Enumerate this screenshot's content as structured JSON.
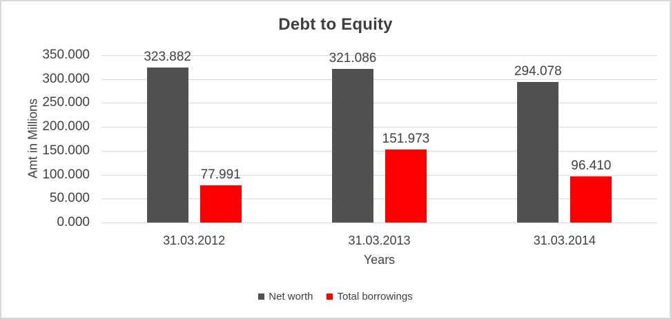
{
  "frame": {
    "background": "#ffffff",
    "border_color": "#d8d8d8"
  },
  "chart_data": {
    "type": "bar",
    "title": "Debt to Equity",
    "xlabel": "Years",
    "ylabel": "Amt in Millions",
    "categories": [
      "31.03.2012",
      "31.03.2013",
      "31.03.2014"
    ],
    "series": [
      {
        "name": "Net worth",
        "color": "#515151",
        "values": [
          323.882,
          321.086,
          294.078
        ]
      },
      {
        "name": "Total borrowings",
        "color": "#ff0000",
        "values": [
          77.991,
          151.973,
          96.41
        ]
      }
    ],
    "ylim": [
      0,
      350
    ],
    "ytick_step": 50,
    "ytick_labels": [
      "0.000",
      "50.000",
      "100.000",
      "150.000",
      "200.000",
      "250.000",
      "300.000",
      "350.000"
    ],
    "data_label_decimals": 3,
    "grid": true,
    "gridline_color": "#d9d9d9",
    "legend_position": "bottom",
    "text_color": "#404040",
    "title_color": "#3f3f3f"
  }
}
